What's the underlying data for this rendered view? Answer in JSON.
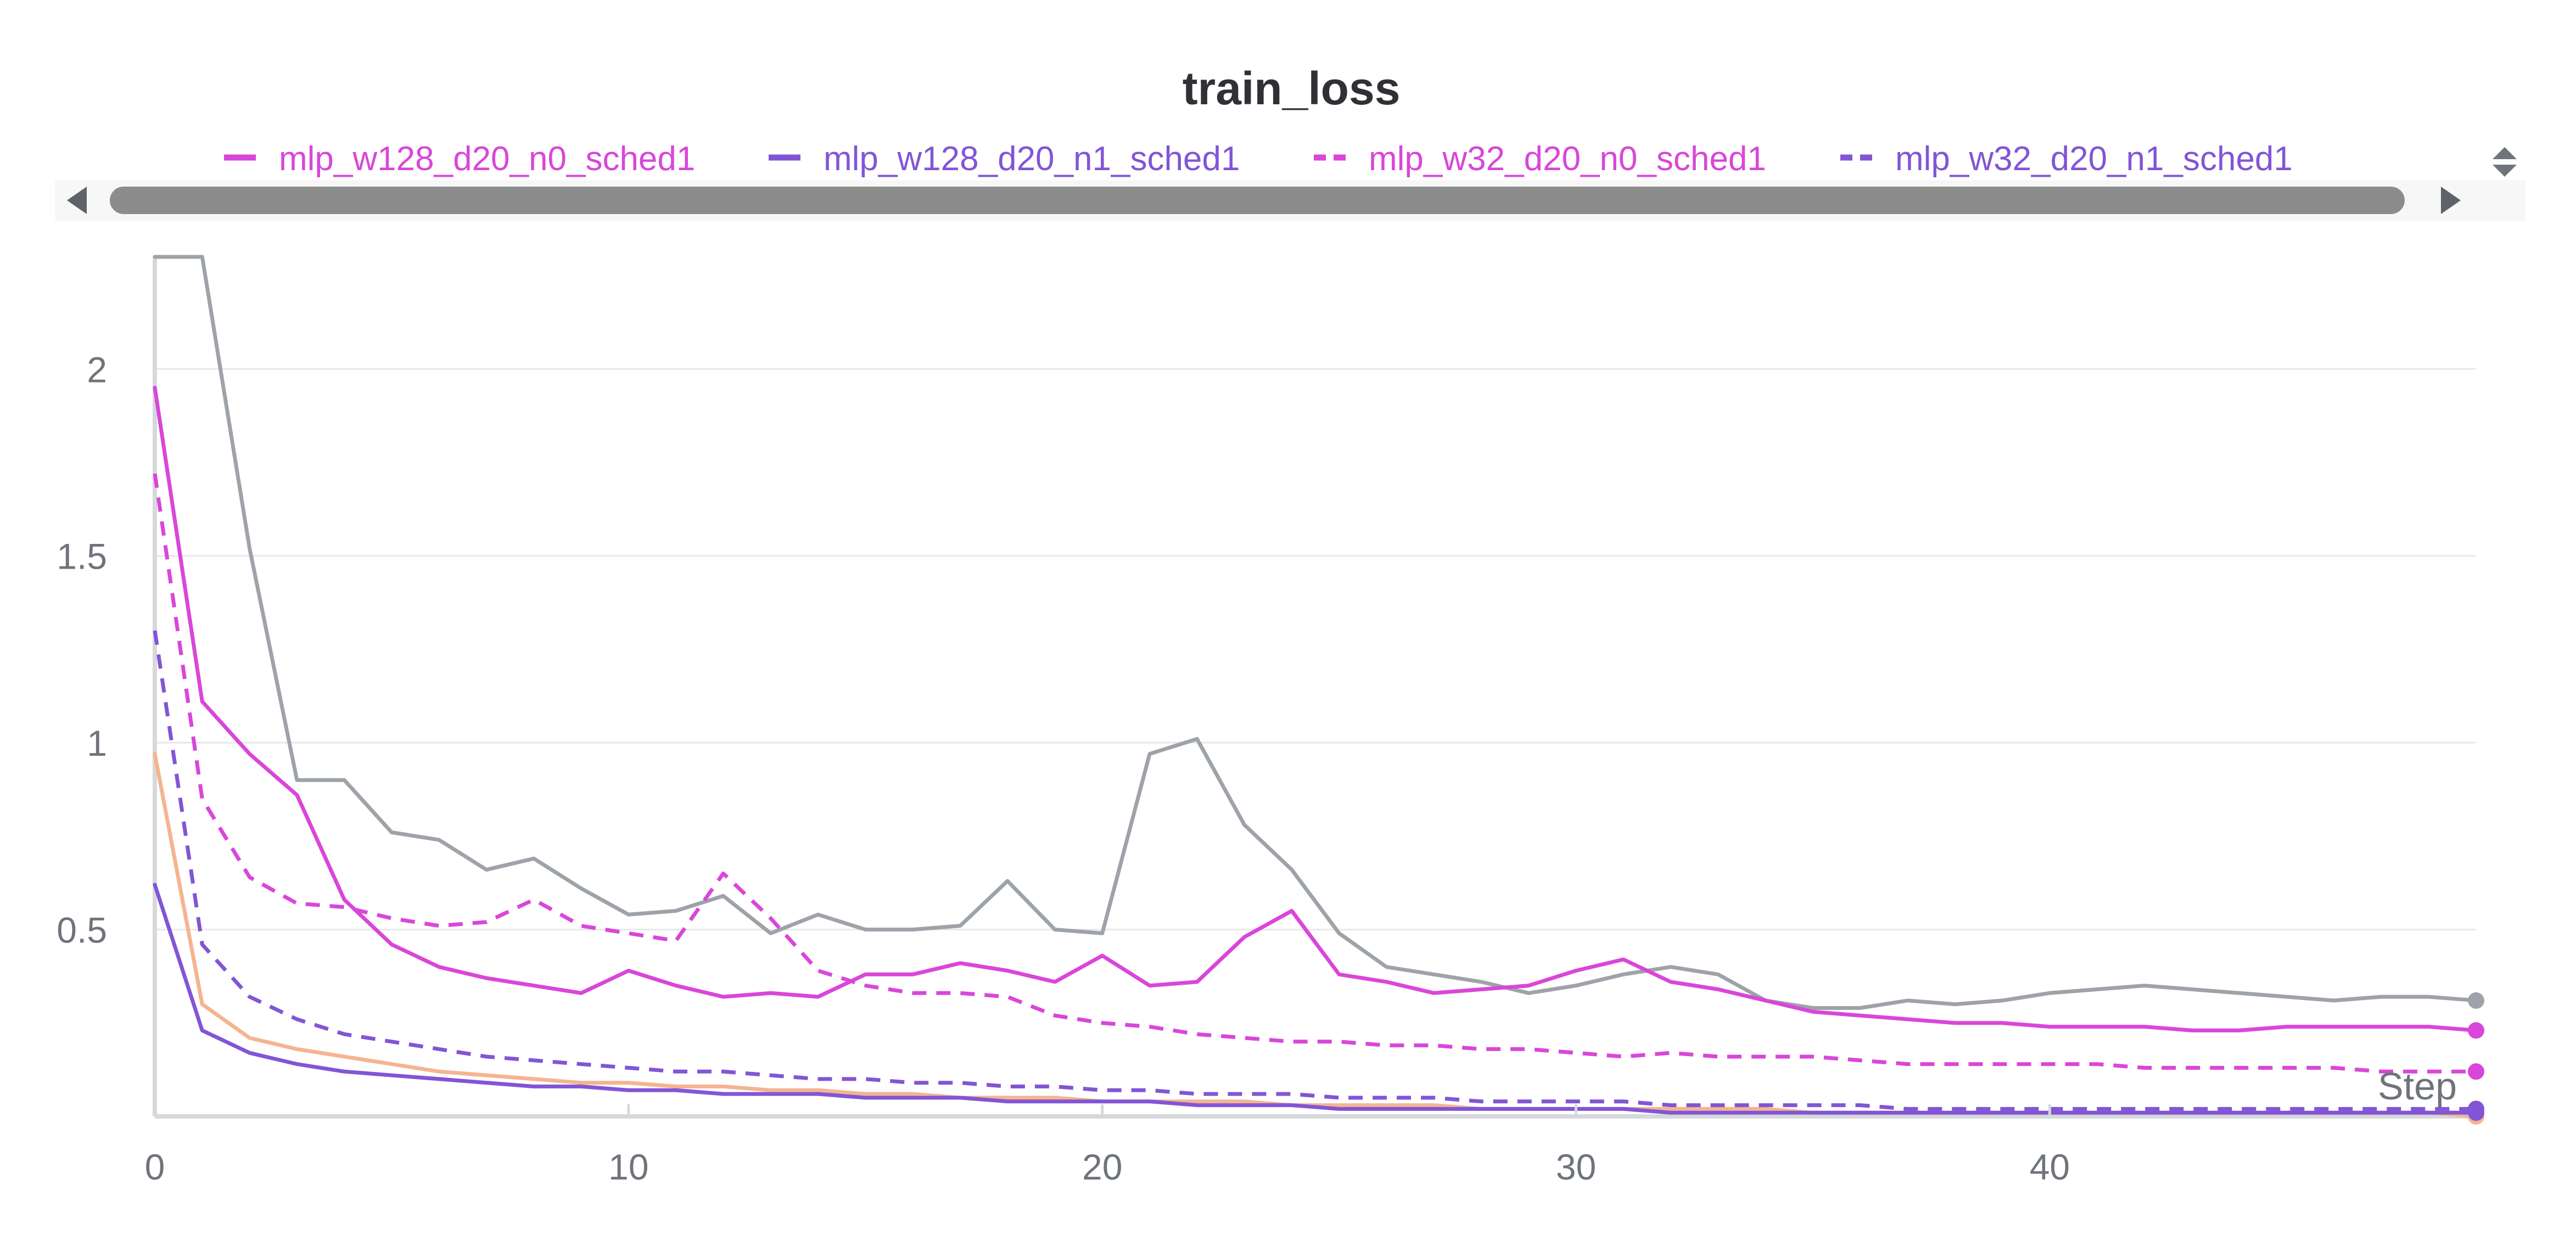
{
  "chart_data": {
    "type": "line",
    "title": "train_loss",
    "xlabel": "Step",
    "ylabel": "",
    "xlim": [
      0,
      49
    ],
    "ylim": [
      0,
      2.3
    ],
    "xticks": [
      0,
      10,
      20,
      30,
      40
    ],
    "yticks": [
      0.5,
      1,
      1.5,
      2
    ],
    "xtick_labels": [
      "0",
      "10",
      "20",
      "30",
      "40"
    ],
    "ytick_labels": [
      "0.5",
      "1",
      "1.5",
      "2"
    ],
    "grid": true,
    "legend_position": "top",
    "series": [
      {
        "name": "mlp_w128_d20_n0_sched1",
        "color": "#d946d9",
        "dash": "solid",
        "in_legend": true,
        "values": [
          1.95,
          1.11,
          0.97,
          0.86,
          0.58,
          0.46,
          0.4,
          0.37,
          0.35,
          0.33,
          0.39,
          0.35,
          0.32,
          0.33,
          0.32,
          0.38,
          0.38,
          0.41,
          0.39,
          0.36,
          0.43,
          0.35,
          0.36,
          0.48,
          0.55,
          0.38,
          0.36,
          0.33,
          0.34,
          0.35,
          0.39,
          0.42,
          0.36,
          0.34,
          0.31,
          0.28,
          0.27,
          0.26,
          0.25,
          0.25,
          0.24,
          0.24,
          0.24,
          0.23,
          0.23,
          0.24,
          0.24,
          0.24,
          0.24,
          0.23
        ]
      },
      {
        "name": "mlp_w128_d20_n1_sched1",
        "color": "#8255d6",
        "dash": "solid",
        "in_legend": true,
        "values": [
          0.62,
          0.23,
          0.17,
          0.14,
          0.12,
          0.11,
          0.1,
          0.09,
          0.08,
          0.08,
          0.07,
          0.07,
          0.06,
          0.06,
          0.06,
          0.05,
          0.05,
          0.05,
          0.04,
          0.04,
          0.04,
          0.04,
          0.03,
          0.03,
          0.03,
          0.02,
          0.02,
          0.02,
          0.02,
          0.02,
          0.02,
          0.02,
          0.01,
          0.01,
          0.01,
          0.01,
          0.01,
          0.01,
          0.01,
          0.01,
          0.01,
          0.01,
          0.01,
          0.01,
          0.01,
          0.01,
          0.01,
          0.01,
          0.01,
          0.01
        ]
      },
      {
        "name": "mlp_w32_d20_n0_sched1",
        "color": "#d946d9",
        "dash": "dashed",
        "in_legend": true,
        "values": [
          1.72,
          0.85,
          0.64,
          0.57,
          0.56,
          0.53,
          0.51,
          0.52,
          0.58,
          0.51,
          0.49,
          0.47,
          0.65,
          0.53,
          0.39,
          0.35,
          0.33,
          0.33,
          0.32,
          0.27,
          0.25,
          0.24,
          0.22,
          0.21,
          0.2,
          0.2,
          0.19,
          0.19,
          0.18,
          0.18,
          0.17,
          0.16,
          0.17,
          0.16,
          0.16,
          0.16,
          0.15,
          0.14,
          0.14,
          0.14,
          0.14,
          0.14,
          0.13,
          0.13,
          0.13,
          0.13,
          0.13,
          0.12,
          0.12,
          0.12
        ]
      },
      {
        "name": "mlp_w32_d20_n1_sched1",
        "color": "#8255d6",
        "dash": "dashed",
        "in_legend": true,
        "values": [
          1.3,
          0.46,
          0.32,
          0.26,
          0.22,
          0.2,
          0.18,
          0.16,
          0.15,
          0.14,
          0.13,
          0.12,
          0.12,
          0.11,
          0.1,
          0.1,
          0.09,
          0.09,
          0.08,
          0.08,
          0.07,
          0.07,
          0.06,
          0.06,
          0.06,
          0.05,
          0.05,
          0.05,
          0.04,
          0.04,
          0.04,
          0.04,
          0.03,
          0.03,
          0.03,
          0.03,
          0.03,
          0.02,
          0.02,
          0.02,
          0.02,
          0.02,
          0.02,
          0.02,
          0.02,
          0.02,
          0.02,
          0.02,
          0.02,
          0.02
        ]
      },
      {
        "color": "#9da3a8",
        "dash": "solid",
        "in_legend": false,
        "values": [
          2.3,
          2.3,
          1.52,
          0.9,
          0.9,
          0.76,
          0.74,
          0.66,
          0.69,
          0.61,
          0.54,
          0.55,
          0.59,
          0.49,
          0.54,
          0.5,
          0.5,
          0.51,
          0.63,
          0.5,
          0.49,
          0.97,
          1.01,
          0.78,
          0.66,
          0.49,
          0.4,
          0.38,
          0.36,
          0.33,
          0.35,
          0.38,
          0.4,
          0.38,
          0.31,
          0.29,
          0.29,
          0.31,
          0.3,
          0.31,
          0.33,
          0.34,
          0.35,
          0.34,
          0.33,
          0.32,
          0.31,
          0.32,
          0.32,
          0.31
        ]
      },
      {
        "color": "#f5b48f",
        "dash": "solid",
        "in_legend": false,
        "values": [
          0.97,
          0.3,
          0.21,
          0.18,
          0.16,
          0.14,
          0.12,
          0.11,
          0.1,
          0.09,
          0.09,
          0.08,
          0.08,
          0.07,
          0.07,
          0.06,
          0.06,
          0.05,
          0.05,
          0.05,
          0.04,
          0.04,
          0.04,
          0.04,
          0.03,
          0.03,
          0.03,
          0.03,
          0.02,
          0.02,
          0.02,
          0.02,
          0.02,
          0.02,
          0.02,
          0.01,
          0.01,
          0.01,
          0.01,
          0.01,
          0.01,
          0.01,
          0.01,
          0.01,
          0.01,
          0.01,
          0.01,
          0.01,
          0.01,
          0.0
        ]
      }
    ]
  },
  "icons": {
    "scroll_left": "chevron-left-icon",
    "scroll_right": "chevron-right-icon",
    "legend_toggle": "sort-toggle-icon"
  },
  "colors": {
    "axis": "#d6d8db",
    "grid": "#e7e8ea",
    "scrollbar_thumb": "#8c8c8c",
    "scrollbar_track": "#f5f5f5"
  }
}
